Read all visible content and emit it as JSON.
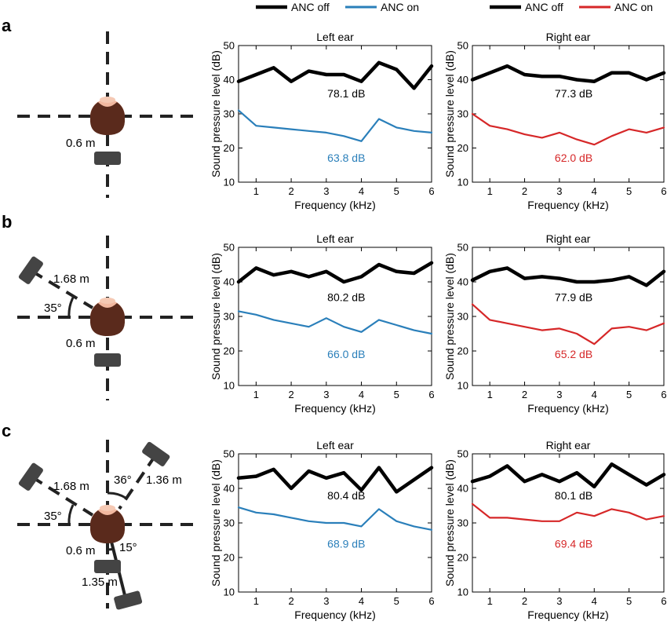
{
  "legend": {
    "left": [
      {
        "label": "ANC off",
        "color": "#000000"
      },
      {
        "label": "ANC on",
        "color": "#2a7fba"
      }
    ],
    "right": [
      {
        "label": "ANC off",
        "color": "#000000"
      },
      {
        "label": "ANC on",
        "color": "#d62728"
      }
    ]
  },
  "panels": [
    {
      "label": "a",
      "distances": [
        "0.6 m"
      ],
      "angles": []
    },
    {
      "label": "b",
      "distances": [
        "1.68 m",
        "0.6 m"
      ],
      "angles": [
        "35°"
      ]
    },
    {
      "label": "c",
      "distances": [
        "1.68 m",
        "1.36 m",
        "0.6 m",
        "1.35 m"
      ],
      "angles": [
        "35°",
        "36°",
        "15°"
      ]
    }
  ],
  "chart_data": [
    {
      "type": "line",
      "panel": "a",
      "title": "Left ear",
      "xlabel": "Frequency (kHz)",
      "ylabel": "Sound pressure level (dB)",
      "xlim": [
        0.5,
        6
      ],
      "ylim": [
        10,
        50
      ],
      "xticks": [
        1,
        2,
        3,
        4,
        5,
        6
      ],
      "yticks": [
        10,
        20,
        30,
        40,
        50
      ],
      "x": [
        0.5,
        1,
        1.5,
        2,
        2.5,
        3,
        3.5,
        4,
        4.5,
        5,
        5.5,
        6
      ],
      "series": [
        {
          "name": "ANC off",
          "color": "#000000",
          "annotation": "78.1 dB",
          "values": [
            39.5,
            41.5,
            43.5,
            39.5,
            42.5,
            41.5,
            41.5,
            39.5,
            45,
            43,
            37.5,
            44
          ]
        },
        {
          "name": "ANC on",
          "color": "#2a7fba",
          "annotation": "63.8 dB",
          "values": [
            31,
            26.5,
            26,
            25.5,
            25,
            24.5,
            23.5,
            22,
            28.5,
            26,
            25,
            24.5
          ]
        }
      ]
    },
    {
      "type": "line",
      "panel": "a",
      "title": "Right ear",
      "xlabel": "Frequency (kHz)",
      "ylabel": "Sound pressure level (dB)",
      "xlim": [
        0.5,
        6
      ],
      "ylim": [
        10,
        50
      ],
      "xticks": [
        1,
        2,
        3,
        4,
        5,
        6
      ],
      "yticks": [
        10,
        20,
        30,
        40,
        50
      ],
      "x": [
        0.5,
        1,
        1.5,
        2,
        2.5,
        3,
        3.5,
        4,
        4.5,
        5,
        5.5,
        6
      ],
      "series": [
        {
          "name": "ANC off",
          "color": "#000000",
          "annotation": "77.3 dB",
          "values": [
            40,
            42,
            44,
            41.5,
            41,
            41,
            40,
            39.5,
            42,
            42,
            40,
            42
          ]
        },
        {
          "name": "ANC on",
          "color": "#d62728",
          "annotation": "62.0 dB",
          "values": [
            30,
            26.5,
            25.5,
            24,
            23,
            24.5,
            22.5,
            21,
            23.5,
            25.5,
            24.5,
            26
          ]
        }
      ]
    },
    {
      "type": "line",
      "panel": "b",
      "title": "Left ear",
      "xlabel": "Frequency (kHz)",
      "ylabel": "Sound pressure level (dB)",
      "xlim": [
        0.5,
        6
      ],
      "ylim": [
        10,
        50
      ],
      "xticks": [
        1,
        2,
        3,
        4,
        5,
        6
      ],
      "yticks": [
        10,
        20,
        30,
        40,
        50
      ],
      "x": [
        0.5,
        1,
        1.5,
        2,
        2.5,
        3,
        3.5,
        4,
        4.5,
        5,
        5.5,
        6
      ],
      "series": [
        {
          "name": "ANC off",
          "color": "#000000",
          "annotation": "80.2 dB",
          "values": [
            40,
            44,
            42,
            43,
            41.5,
            43,
            40,
            41.5,
            45,
            43,
            42.5,
            45.5
          ]
        },
        {
          "name": "ANC on",
          "color": "#2a7fba",
          "annotation": "66.0 dB",
          "values": [
            31.5,
            30.5,
            29,
            28,
            27,
            29.5,
            27,
            25.5,
            29,
            27.5,
            26,
            25
          ]
        }
      ]
    },
    {
      "type": "line",
      "panel": "b",
      "title": "Right ear",
      "xlabel": "Frequency (kHz)",
      "ylabel": "Sound pressure level (dB)",
      "xlim": [
        0.5,
        6
      ],
      "ylim": [
        10,
        50
      ],
      "xticks": [
        1,
        2,
        3,
        4,
        5,
        6
      ],
      "yticks": [
        10,
        20,
        30,
        40,
        50
      ],
      "x": [
        0.5,
        1,
        1.5,
        2,
        2.5,
        3,
        3.5,
        4,
        4.5,
        5,
        5.5,
        6
      ],
      "series": [
        {
          "name": "ANC off",
          "color": "#000000",
          "annotation": "77.9 dB",
          "values": [
            40.5,
            43,
            44,
            41,
            41.5,
            41,
            40,
            40,
            40.5,
            41.5,
            39,
            43
          ]
        },
        {
          "name": "ANC on",
          "color": "#d62728",
          "annotation": "65.2 dB",
          "values": [
            33.5,
            29,
            28,
            27,
            26,
            26.5,
            25,
            22,
            26.5,
            27,
            26,
            28
          ]
        }
      ]
    },
    {
      "type": "line",
      "panel": "c",
      "title": "Left ear",
      "xlabel": "Frequency (kHz)",
      "ylabel": "Sound pressure level (dB)",
      "xlim": [
        0.5,
        6
      ],
      "ylim": [
        10,
        50
      ],
      "xticks": [
        1,
        2,
        3,
        4,
        5,
        6
      ],
      "yticks": [
        10,
        20,
        30,
        40,
        50
      ],
      "x": [
        0.5,
        1,
        1.5,
        2,
        2.5,
        3,
        3.5,
        4,
        4.5,
        5,
        5.5,
        6
      ],
      "series": [
        {
          "name": "ANC off",
          "color": "#000000",
          "annotation": "80.4 dB",
          "values": [
            43,
            43.5,
            45.5,
            40,
            45,
            43,
            44.5,
            39.5,
            46,
            39,
            42.5,
            46
          ]
        },
        {
          "name": "ANC on",
          "color": "#2a7fba",
          "annotation": "68.9 dB",
          "values": [
            34.5,
            33,
            32.5,
            31.5,
            30.5,
            30,
            30,
            29,
            34,
            30.5,
            29,
            28
          ]
        }
      ]
    },
    {
      "type": "line",
      "panel": "c",
      "title": "Right ear",
      "xlabel": "Frequency (kHz)",
      "ylabel": "Sound pressure level (dB)",
      "xlim": [
        0.5,
        6
      ],
      "ylim": [
        10,
        50
      ],
      "xticks": [
        1,
        2,
        3,
        4,
        5,
        6
      ],
      "yticks": [
        10,
        20,
        30,
        40,
        50
      ],
      "x": [
        0.5,
        1,
        1.5,
        2,
        2.5,
        3,
        3.5,
        4,
        4.5,
        5,
        5.5,
        6
      ],
      "series": [
        {
          "name": "ANC off",
          "color": "#000000",
          "annotation": "80.1 dB",
          "values": [
            42,
            43.5,
            46.5,
            42,
            44,
            42,
            44.5,
            40.5,
            47,
            44,
            41,
            44
          ]
        },
        {
          "name": "ANC on",
          "color": "#d62728",
          "annotation": "69.4 dB",
          "values": [
            35.5,
            31.5,
            31.5,
            31,
            30.5,
            30.5,
            33,
            32,
            34,
            33,
            31,
            32
          ]
        }
      ]
    }
  ]
}
